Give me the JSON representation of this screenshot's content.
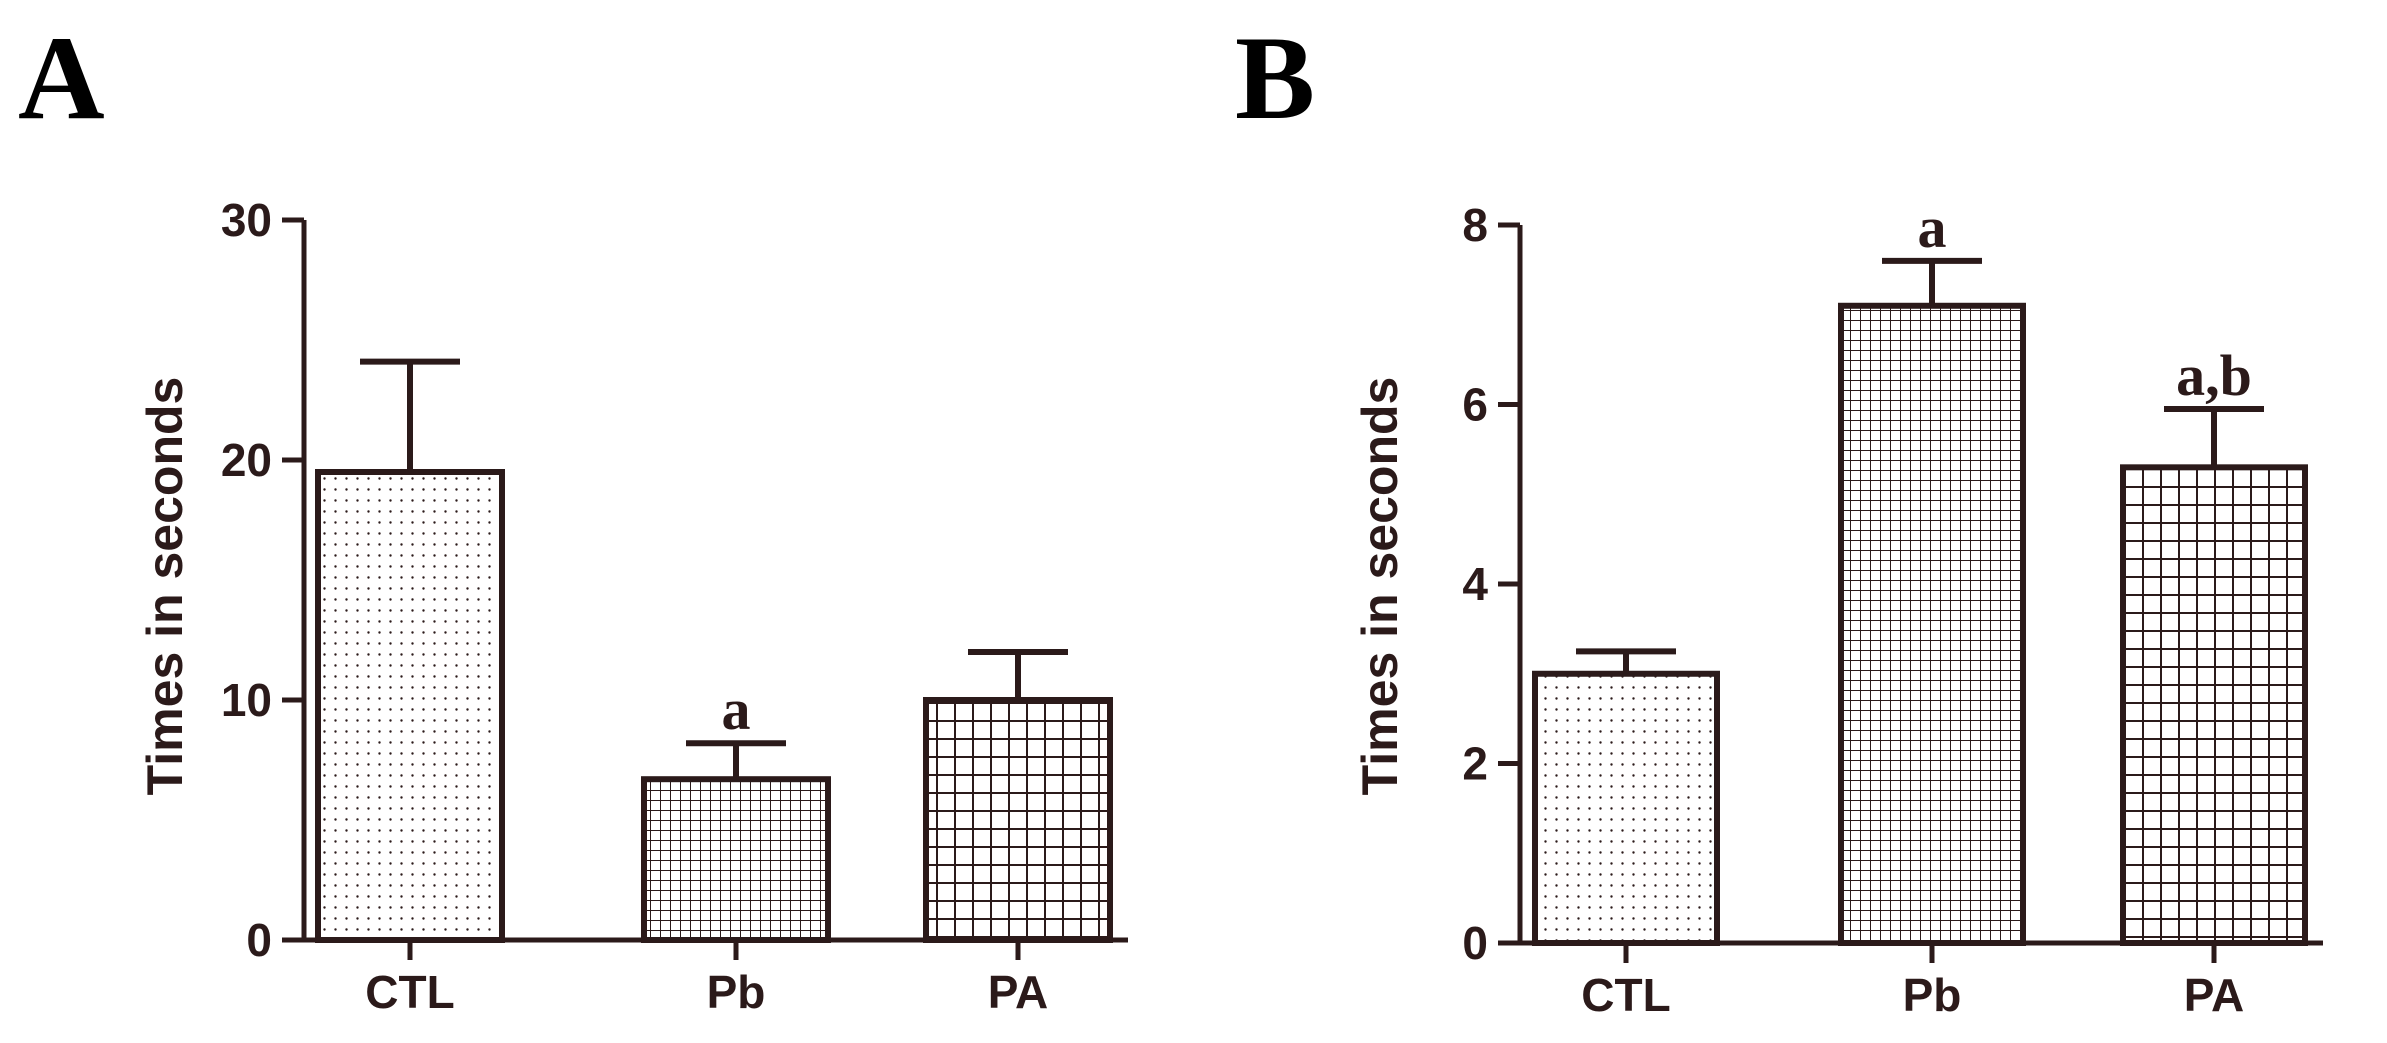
{
  "colors": {
    "ink": "#2b1a1a",
    "background": "#ffffff"
  },
  "chart_data": [
    {
      "panel_label": "A",
      "type": "bar",
      "title": "",
      "xlabel": "",
      "ylabel": "Times in seconds",
      "ylim": [
        0,
        30
      ],
      "yticks": [
        0,
        10,
        20,
        30
      ],
      "ytick_labels": [
        "0",
        "10",
        "20",
        "30"
      ],
      "grid": false,
      "categories": [
        "CTL",
        "Pb",
        "PA"
      ],
      "values": [
        19.5,
        6.7,
        10.0
      ],
      "errors": [
        4.6,
        1.5,
        2.0
      ],
      "significance": [
        "",
        "a",
        ""
      ],
      "patterns": [
        "dots",
        "fine-grid",
        "coarse-grid"
      ]
    },
    {
      "panel_label": "B",
      "type": "bar",
      "title": "",
      "xlabel": "",
      "ylabel": "Times in seconds",
      "ylim": [
        0,
        8
      ],
      "yticks": [
        0,
        2,
        4,
        6,
        8
      ],
      "ytick_labels": [
        "0",
        "2",
        "4",
        "6",
        "8"
      ],
      "grid": false,
      "categories": [
        "CTL",
        "Pb",
        "PA"
      ],
      "values": [
        3.0,
        7.1,
        5.3
      ],
      "errors": [
        0.25,
        0.5,
        0.65
      ],
      "significance": [
        "",
        "a",
        "a,b"
      ],
      "patterns": [
        "dots",
        "fine-grid",
        "coarse-grid"
      ]
    }
  ]
}
